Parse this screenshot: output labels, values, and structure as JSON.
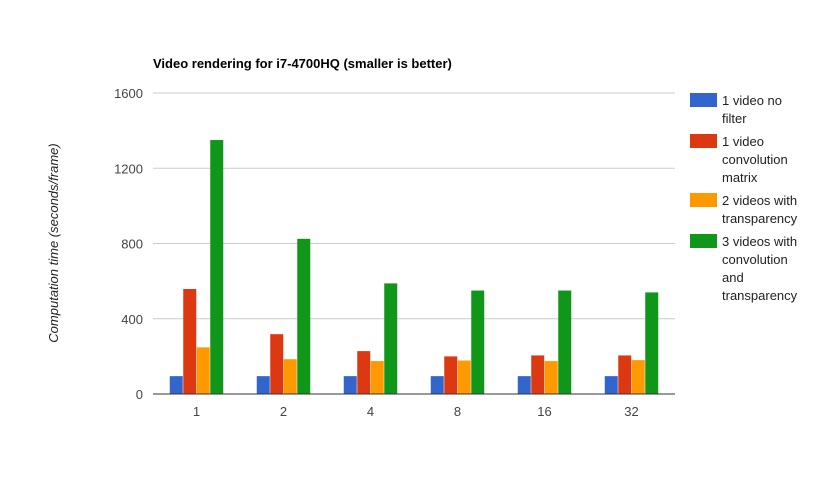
{
  "chart_data": {
    "type": "bar",
    "title": "Video rendering for i7-4700HQ (smaller is better)",
    "xlabel": "",
    "ylabel": "Computation time (seconds/frame)",
    "categories": [
      "1",
      "2",
      "4",
      "8",
      "16",
      "32"
    ],
    "ylim": [
      0,
      1600
    ],
    "yticks": [
      "0",
      "400",
      "800",
      "1200",
      "1600"
    ],
    "grid": true,
    "legend_position": "right",
    "series": [
      {
        "name": "1 video no filter",
        "legend_lines": [
          "1 video no",
          "filter"
        ],
        "color": "#3366cc",
        "values": [
          95,
          95,
          95,
          95,
          95,
          95
        ]
      },
      {
        "name": "1 video convolution matrix",
        "legend_lines": [
          "1 video",
          "convolution",
          "matrix"
        ],
        "color": "#dc3912",
        "values": [
          558,
          318,
          228,
          200,
          205,
          205
        ]
      },
      {
        "name": "2 videos with transparency",
        "legend_lines": [
          "2 videos with",
          "transparency"
        ],
        "color": "#ff9900",
        "values": [
          248,
          185,
          175,
          178,
          175,
          180
        ]
      },
      {
        "name": "3 videos with convolution and transparency",
        "legend_lines": [
          "3 videos with",
          "convolution",
          "and",
          "transparency"
        ],
        "color": "#109618",
        "values": [
          1350,
          825,
          588,
          550,
          550,
          540
        ]
      }
    ]
  }
}
